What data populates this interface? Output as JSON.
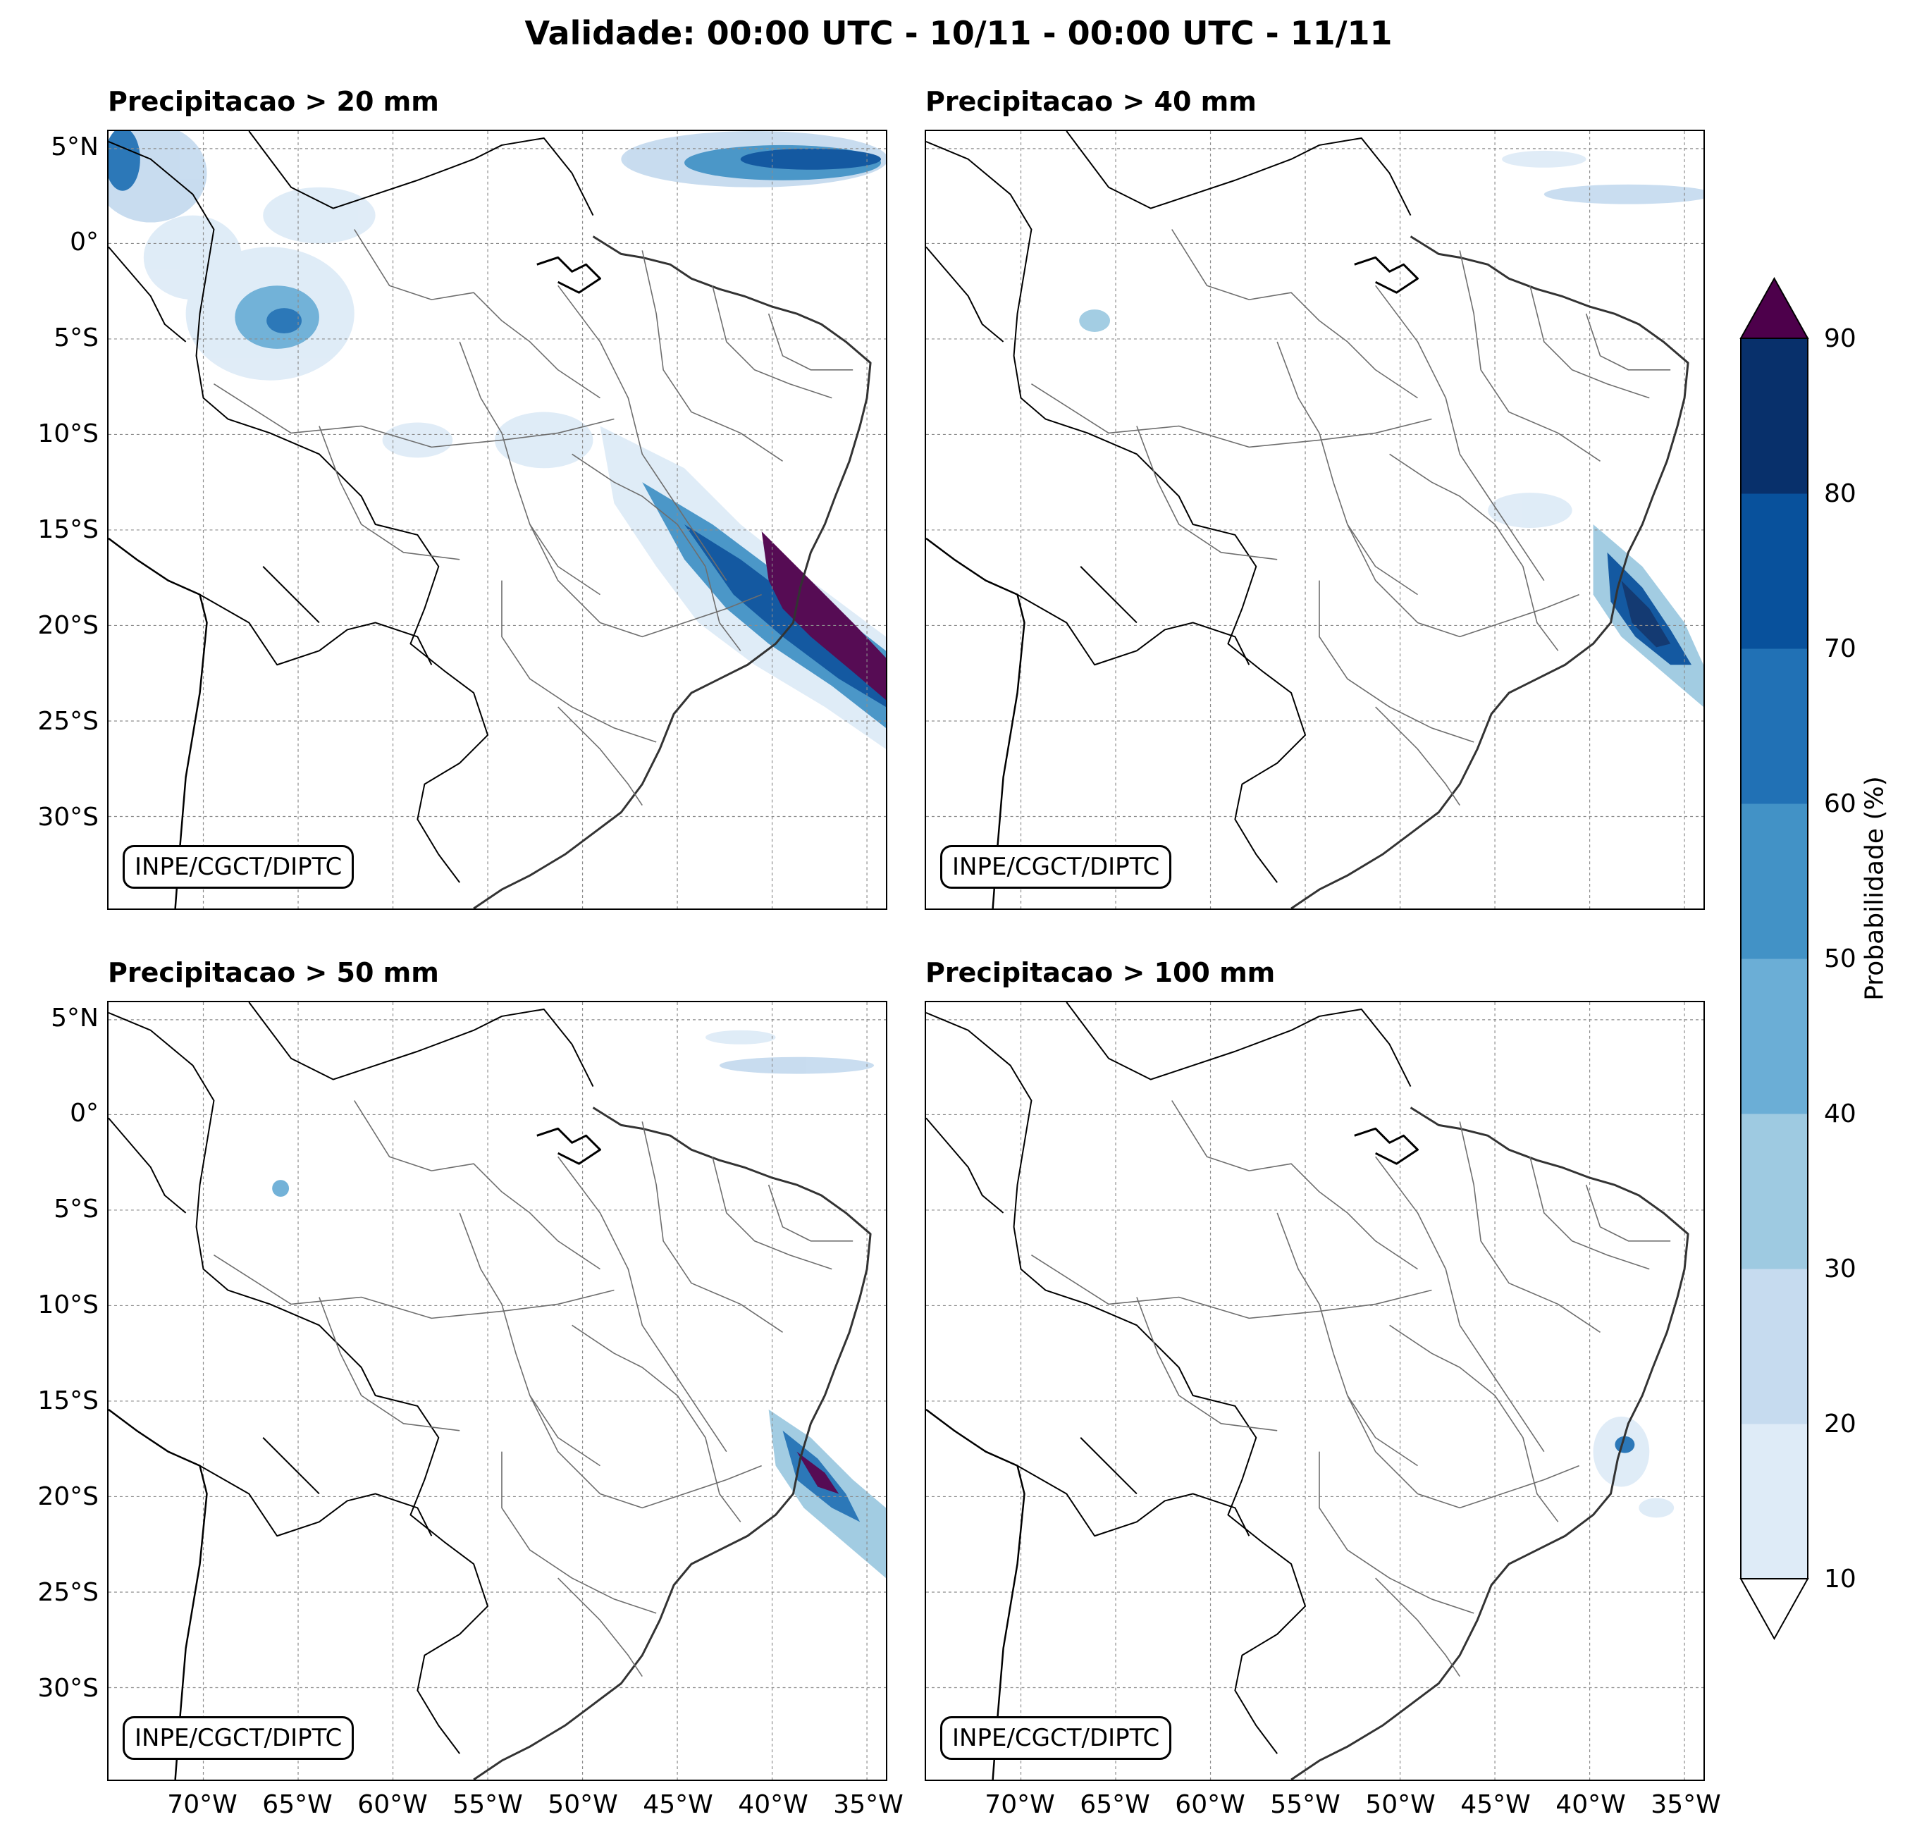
{
  "figure": {
    "title": "Validade: 00:00 UTC - 10/11 - 00:00 UTC - 11/11",
    "watermark": "INPE/CGCT/DIPTC"
  },
  "panels": [
    {
      "title": "Precipitacao > 20 mm"
    },
    {
      "title": "Precipitacao > 40 mm"
    },
    {
      "title": "Precipitacao > 50 mm"
    },
    {
      "title": "Precipitacao > 100 mm"
    }
  ],
  "axes": {
    "lat_ticks": [
      "5°N",
      "0°",
      "5°S",
      "10°S",
      "15°S",
      "20°S",
      "25°S",
      "30°S"
    ],
    "lon_ticks": [
      "70°W",
      "65°W",
      "60°W",
      "55°W",
      "50°W",
      "45°W",
      "40°W",
      "35°W"
    ]
  },
  "colorbar": {
    "label": "Probabilidade (%)",
    "ticks": [
      "10",
      "20",
      "30",
      "40",
      "50",
      "60",
      "70",
      "80",
      "90"
    ],
    "colors": [
      "#deebf7",
      "#c6dbef",
      "#9ecae1",
      "#6baed6",
      "#4292c6",
      "#2171b5",
      "#08519c",
      "#08306b"
    ],
    "over_color": "#4d004b",
    "under_color": "#ffffff"
  }
}
